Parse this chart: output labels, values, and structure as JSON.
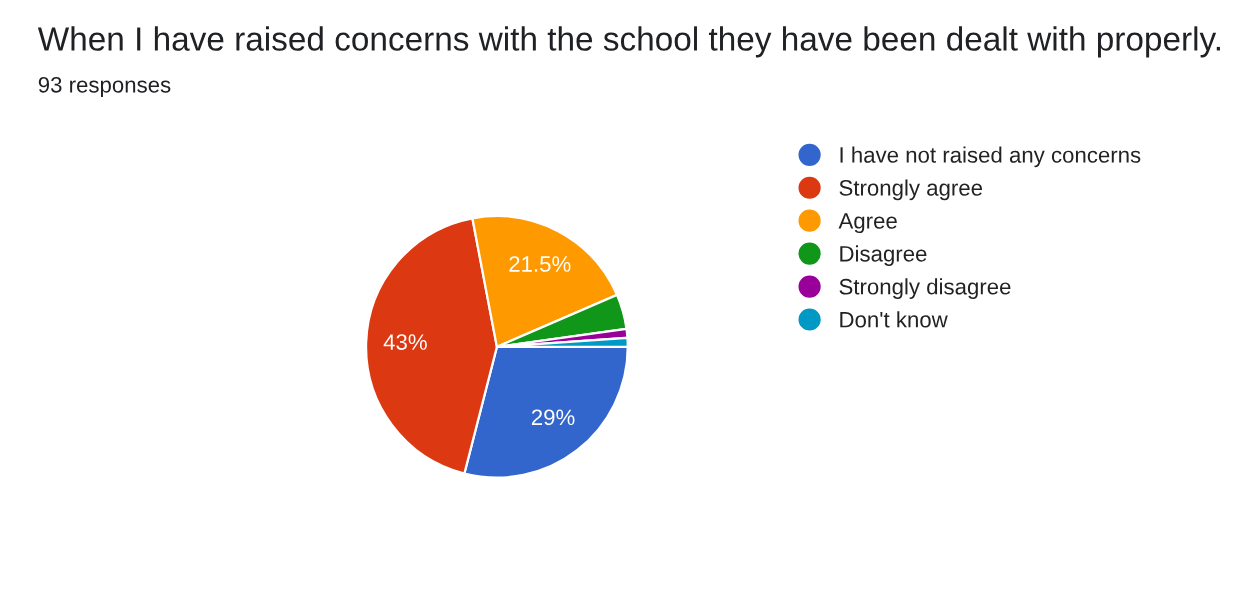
{
  "chart_data": {
    "type": "pie",
    "title": "When I have raised concerns with the school they have been dealt with properly.",
    "subtitle": "93 responses",
    "categories": [
      "I have not raised any concerns",
      "Strongly agree",
      "Agree",
      "Disagree",
      "Strongly disagree",
      "Don't know"
    ],
    "values": [
      29,
      43,
      21.5,
      4.3,
      1.1,
      1.1
    ],
    "value_labels": [
      "29%",
      "43%",
      "21.5%",
      null,
      null,
      null
    ],
    "colors": [
      "#3366cc",
      "#dc3912",
      "#ff9900",
      "#109618",
      "#990099",
      "#0099c6"
    ],
    "legend": "right"
  }
}
